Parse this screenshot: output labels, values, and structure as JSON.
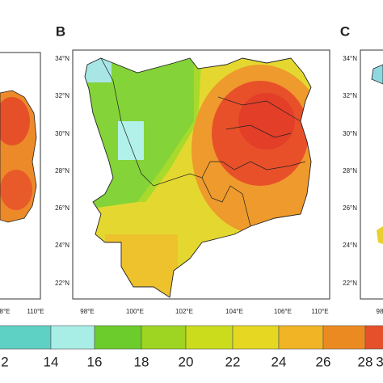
{
  "panels": {
    "middle": "B",
    "right": "C"
  },
  "middle_lat_labels": [
    "34°N",
    "32°N",
    "30°N",
    "28°N",
    "26°N",
    "24°N",
    "22°N"
  ],
  "middle_lon_labels": [
    "98°E",
    "100°E",
    "102°E",
    "104°E",
    "106°E",
    "110°E"
  ],
  "left_lon_labels": [
    "8°E",
    "110°E"
  ],
  "right_lat_labels": [
    "34°N",
    "32°N",
    "30°N",
    "28°N",
    "26°N",
    "24°N",
    "22°N"
  ],
  "right_lon_labels": [
    "98"
  ],
  "colorbar_labels": [
    "2",
    "14",
    "16",
    "18",
    "20",
    "22",
    "24",
    "26",
    "28",
    "3"
  ]
}
